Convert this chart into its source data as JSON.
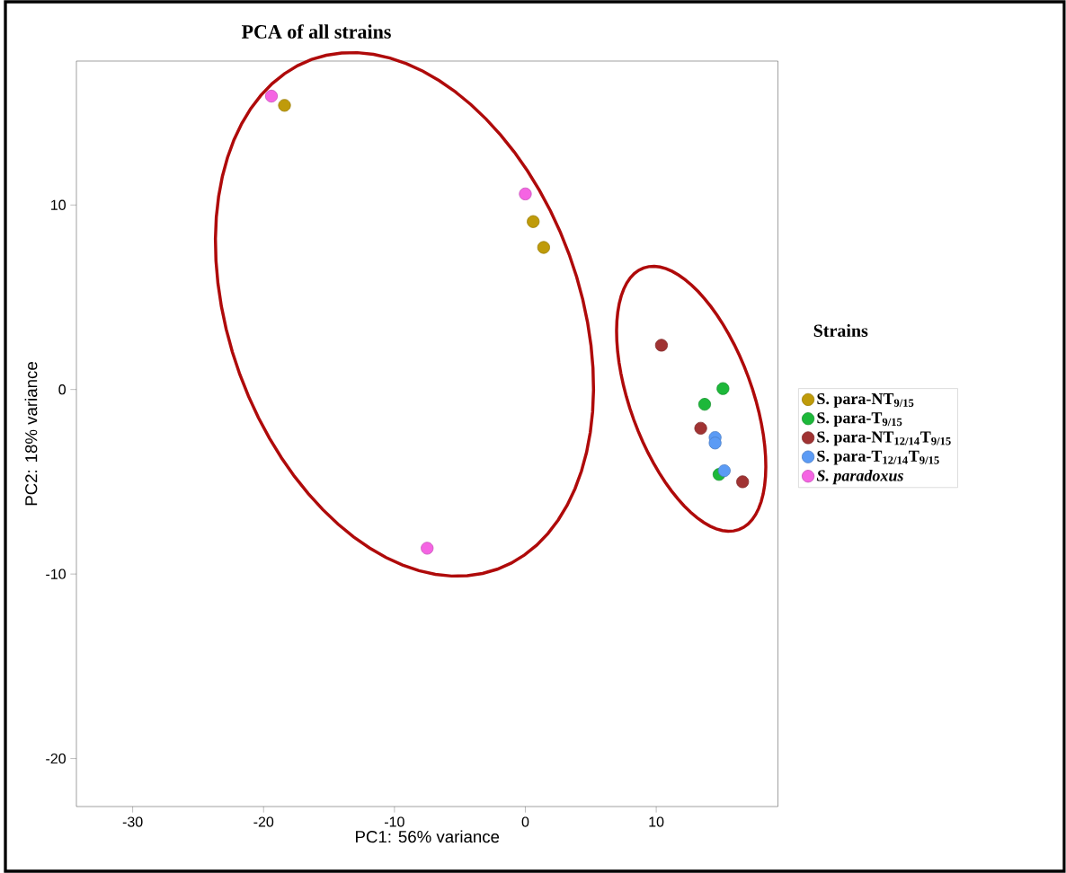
{
  "chart_data": {
    "type": "scatter",
    "title": "PCA of all strains",
    "xlabel": "PC1: 56% variance",
    "ylabel": "PC2: 18% variance",
    "legend_title": "Strains",
    "legend": "right",
    "marker": "circle",
    "grid": false,
    "xlim": [
      -34.3,
      19.3
    ],
    "ylim": [
      -22.6,
      17.8
    ],
    "xticks": [
      -30,
      -20,
      -10,
      0,
      10
    ],
    "yticks": [
      -20,
      -10,
      0,
      10
    ],
    "series": [
      {
        "name": "S. para-NT$_{9/15}$",
        "color": "#bf9b0a",
        "x": [
          -18.4,
          0.6,
          1.4
        ],
        "values": [
          15.4,
          9.1,
          7.7
        ]
      },
      {
        "name": "S. para-T$_{9/15}$",
        "color": "#1db83a",
        "x": [
          15.1,
          13.7,
          14.8
        ],
        "values": [
          0.05,
          -0.8,
          -4.6
        ]
      },
      {
        "name": "S. para-NT$_{12/14}$T$_{9/15}$",
        "color": "#a03333",
        "x": [
          10.4,
          13.4,
          16.6
        ],
        "values": [
          2.4,
          -2.1,
          -5.0
        ]
      },
      {
        "name": "S. para-T$_{12/14}$T$_{9/15}$",
        "color": "#5b9bf5",
        "x": [
          14.5,
          14.5,
          15.2
        ],
        "values": [
          -2.6,
          -2.9,
          -4.4
        ]
      },
      {
        "name": "*S. paradoxus*",
        "color": "#f564e3",
        "x": [
          -19.4,
          0.0,
          -7.5
        ],
        "values": [
          15.9,
          10.6,
          -8.6
        ]
      }
    ]
  }
}
